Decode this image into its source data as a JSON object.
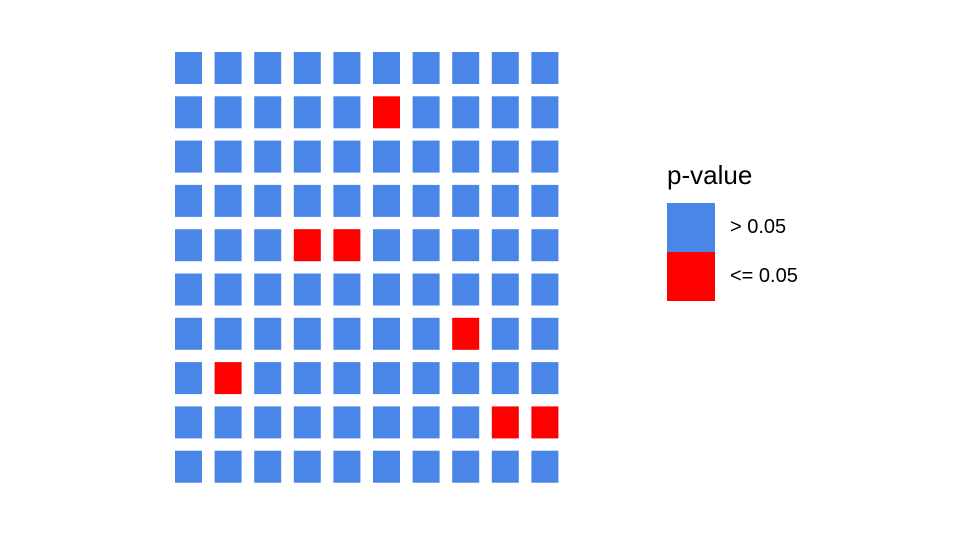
{
  "chart_data": {
    "type": "waffle",
    "rows": 10,
    "cols": 10,
    "cell_status": [
      [
        0,
        0,
        0,
        0,
        0,
        0,
        0,
        0,
        0,
        0
      ],
      [
        0,
        0,
        0,
        0,
        0,
        1,
        0,
        0,
        0,
        0
      ],
      [
        0,
        0,
        0,
        0,
        0,
        0,
        0,
        0,
        0,
        0
      ],
      [
        0,
        0,
        0,
        0,
        0,
        0,
        0,
        0,
        0,
        0
      ],
      [
        0,
        0,
        0,
        1,
        1,
        0,
        0,
        0,
        0,
        0
      ],
      [
        0,
        0,
        0,
        0,
        0,
        0,
        0,
        0,
        0,
        0
      ],
      [
        0,
        0,
        0,
        0,
        0,
        0,
        0,
        1,
        0,
        0
      ],
      [
        0,
        1,
        0,
        0,
        0,
        0,
        0,
        0,
        0,
        0
      ],
      [
        0,
        0,
        0,
        0,
        0,
        0,
        0,
        0,
        1,
        1
      ],
      [
        0,
        0,
        0,
        0,
        0,
        0,
        0,
        0,
        0,
        0
      ]
    ],
    "categories": [
      {
        "label": "> 0.05",
        "color": "#4a86e8",
        "count": 93
      },
      {
        "label": "<= 0.05",
        "color": "#ff0000",
        "count": 7
      }
    ],
    "legend": {
      "title": "p-value",
      "position": "right"
    },
    "grid": false
  }
}
